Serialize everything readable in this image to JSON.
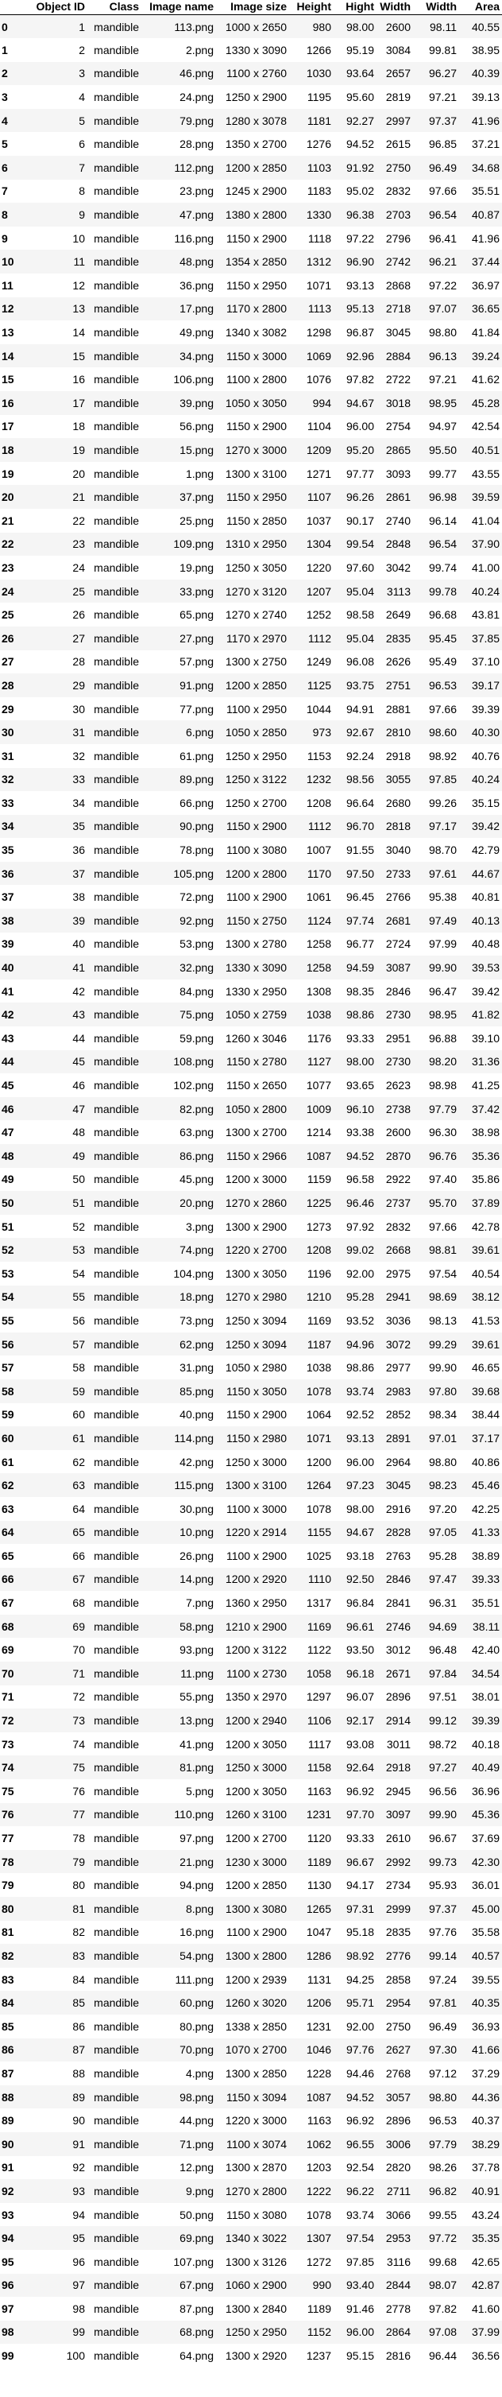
{
  "table": {
    "columns": [
      "",
      "Object ID",
      "Class",
      "Image name",
      "Image size",
      "Height",
      "Hight",
      "Width",
      "Width",
      "Area"
    ],
    "rows": [
      [
        "0",
        "1",
        "mandible",
        "113.png",
        "1000 x 2650",
        "980",
        "98.00",
        "2600",
        "98.11",
        "40.55"
      ],
      [
        "1",
        "2",
        "mandible",
        "2.png",
        "1330 x 3090",
        "1266",
        "95.19",
        "3084",
        "99.81",
        "38.95"
      ],
      [
        "2",
        "3",
        "mandible",
        "46.png",
        "1100 x 2760",
        "1030",
        "93.64",
        "2657",
        "96.27",
        "40.39"
      ],
      [
        "3",
        "4",
        "mandible",
        "24.png",
        "1250 x 2900",
        "1195",
        "95.60",
        "2819",
        "97.21",
        "39.13"
      ],
      [
        "4",
        "5",
        "mandible",
        "79.png",
        "1280 x 3078",
        "1181",
        "92.27",
        "2997",
        "97.37",
        "41.96"
      ],
      [
        "5",
        "6",
        "mandible",
        "28.png",
        "1350 x 2700",
        "1276",
        "94.52",
        "2615",
        "96.85",
        "37.21"
      ],
      [
        "6",
        "7",
        "mandible",
        "112.png",
        "1200 x 2850",
        "1103",
        "91.92",
        "2750",
        "96.49",
        "34.68"
      ],
      [
        "7",
        "8",
        "mandible",
        "23.png",
        "1245 x 2900",
        "1183",
        "95.02",
        "2832",
        "97.66",
        "35.51"
      ],
      [
        "8",
        "9",
        "mandible",
        "47.png",
        "1380 x 2800",
        "1330",
        "96.38",
        "2703",
        "96.54",
        "40.87"
      ],
      [
        "9",
        "10",
        "mandible",
        "116.png",
        "1150 x 2900",
        "1118",
        "97.22",
        "2796",
        "96.41",
        "41.96"
      ],
      [
        "10",
        "11",
        "mandible",
        "48.png",
        "1354 x 2850",
        "1312",
        "96.90",
        "2742",
        "96.21",
        "37.44"
      ],
      [
        "11",
        "12",
        "mandible",
        "36.png",
        "1150 x 2950",
        "1071",
        "93.13",
        "2868",
        "97.22",
        "36.97"
      ],
      [
        "12",
        "13",
        "mandible",
        "17.png",
        "1170 x 2800",
        "1113",
        "95.13",
        "2718",
        "97.07",
        "36.65"
      ],
      [
        "13",
        "14",
        "mandible",
        "49.png",
        "1340 x 3082",
        "1298",
        "96.87",
        "3045",
        "98.80",
        "41.84"
      ],
      [
        "14",
        "15",
        "mandible",
        "34.png",
        "1150 x 3000",
        "1069",
        "92.96",
        "2884",
        "96.13",
        "39.24"
      ],
      [
        "15",
        "16",
        "mandible",
        "106.png",
        "1100 x 2800",
        "1076",
        "97.82",
        "2722",
        "97.21",
        "41.62"
      ],
      [
        "16",
        "17",
        "mandible",
        "39.png",
        "1050 x 3050",
        "994",
        "94.67",
        "3018",
        "98.95",
        "45.28"
      ],
      [
        "17",
        "18",
        "mandible",
        "56.png",
        "1150 x 2900",
        "1104",
        "96.00",
        "2754",
        "94.97",
        "42.54"
      ],
      [
        "18",
        "19",
        "mandible",
        "15.png",
        "1270 x 3000",
        "1209",
        "95.20",
        "2865",
        "95.50",
        "40.51"
      ],
      [
        "19",
        "20",
        "mandible",
        "1.png",
        "1300 x 3100",
        "1271",
        "97.77",
        "3093",
        "99.77",
        "43.55"
      ],
      [
        "20",
        "21",
        "mandible",
        "37.png",
        "1150 x 2950",
        "1107",
        "96.26",
        "2861",
        "96.98",
        "39.59"
      ],
      [
        "21",
        "22",
        "mandible",
        "25.png",
        "1150 x 2850",
        "1037",
        "90.17",
        "2740",
        "96.14",
        "41.04"
      ],
      [
        "22",
        "23",
        "mandible",
        "109.png",
        "1310 x 2950",
        "1304",
        "99.54",
        "2848",
        "96.54",
        "37.90"
      ],
      [
        "23",
        "24",
        "mandible",
        "19.png",
        "1250 x 3050",
        "1220",
        "97.60",
        "3042",
        "99.74",
        "41.00"
      ],
      [
        "24",
        "25",
        "mandible",
        "33.png",
        "1270 x 3120",
        "1207",
        "95.04",
        "3113",
        "99.78",
        "40.24"
      ],
      [
        "25",
        "26",
        "mandible",
        "65.png",
        "1270 x 2740",
        "1252",
        "98.58",
        "2649",
        "96.68",
        "43.81"
      ],
      [
        "26",
        "27",
        "mandible",
        "27.png",
        "1170 x 2970",
        "1112",
        "95.04",
        "2835",
        "95.45",
        "37.85"
      ],
      [
        "27",
        "28",
        "mandible",
        "57.png",
        "1300 x 2750",
        "1249",
        "96.08",
        "2626",
        "95.49",
        "37.10"
      ],
      [
        "28",
        "29",
        "mandible",
        "91.png",
        "1200 x 2850",
        "1125",
        "93.75",
        "2751",
        "96.53",
        "39.17"
      ],
      [
        "29",
        "30",
        "mandible",
        "77.png",
        "1100 x 2950",
        "1044",
        "94.91",
        "2881",
        "97.66",
        "39.39"
      ],
      [
        "30",
        "31",
        "mandible",
        "6.png",
        "1050 x 2850",
        "973",
        "92.67",
        "2810",
        "98.60",
        "40.30"
      ],
      [
        "31",
        "32",
        "mandible",
        "61.png",
        "1250 x 2950",
        "1153",
        "92.24",
        "2918",
        "98.92",
        "40.76"
      ],
      [
        "32",
        "33",
        "mandible",
        "89.png",
        "1250 x 3122",
        "1232",
        "98.56",
        "3055",
        "97.85",
        "40.24"
      ],
      [
        "33",
        "34",
        "mandible",
        "66.png",
        "1250 x 2700",
        "1208",
        "96.64",
        "2680",
        "99.26",
        "35.15"
      ],
      [
        "34",
        "35",
        "mandible",
        "90.png",
        "1150 x 2900",
        "1112",
        "96.70",
        "2818",
        "97.17",
        "39.42"
      ],
      [
        "35",
        "36",
        "mandible",
        "78.png",
        "1100 x 3080",
        "1007",
        "91.55",
        "3040",
        "98.70",
        "42.79"
      ],
      [
        "36",
        "37",
        "mandible",
        "105.png",
        "1200 x 2800",
        "1170",
        "97.50",
        "2733",
        "97.61",
        "44.67"
      ],
      [
        "37",
        "38",
        "mandible",
        "72.png",
        "1100 x 2900",
        "1061",
        "96.45",
        "2766",
        "95.38",
        "40.81"
      ],
      [
        "38",
        "39",
        "mandible",
        "92.png",
        "1150 x 2750",
        "1124",
        "97.74",
        "2681",
        "97.49",
        "40.13"
      ],
      [
        "39",
        "40",
        "mandible",
        "53.png",
        "1300 x 2780",
        "1258",
        "96.77",
        "2724",
        "97.99",
        "40.48"
      ],
      [
        "40",
        "41",
        "mandible",
        "32.png",
        "1330 x 3090",
        "1258",
        "94.59",
        "3087",
        "99.90",
        "39.53"
      ],
      [
        "41",
        "42",
        "mandible",
        "84.png",
        "1330 x 2950",
        "1308",
        "98.35",
        "2846",
        "96.47",
        "39.42"
      ],
      [
        "42",
        "43",
        "mandible",
        "75.png",
        "1050 x 2759",
        "1038",
        "98.86",
        "2730",
        "98.95",
        "41.82"
      ],
      [
        "43",
        "44",
        "mandible",
        "59.png",
        "1260 x 3046",
        "1176",
        "93.33",
        "2951",
        "96.88",
        "39.10"
      ],
      [
        "44",
        "45",
        "mandible",
        "108.png",
        "1150 x 2780",
        "1127",
        "98.00",
        "2730",
        "98.20",
        "31.36"
      ],
      [
        "45",
        "46",
        "mandible",
        "102.png",
        "1150 x 2650",
        "1077",
        "93.65",
        "2623",
        "98.98",
        "41.25"
      ],
      [
        "46",
        "47",
        "mandible",
        "82.png",
        "1050 x 2800",
        "1009",
        "96.10",
        "2738",
        "97.79",
        "37.42"
      ],
      [
        "47",
        "48",
        "mandible",
        "63.png",
        "1300 x 2700",
        "1214",
        "93.38",
        "2600",
        "96.30",
        "38.98"
      ],
      [
        "48",
        "49",
        "mandible",
        "86.png",
        "1150 x 2966",
        "1087",
        "94.52",
        "2870",
        "96.76",
        "35.36"
      ],
      [
        "49",
        "50",
        "mandible",
        "45.png",
        "1200 x 3000",
        "1159",
        "96.58",
        "2922",
        "97.40",
        "35.86"
      ],
      [
        "50",
        "51",
        "mandible",
        "20.png",
        "1270 x 2860",
        "1225",
        "96.46",
        "2737",
        "95.70",
        "37.89"
      ],
      [
        "51",
        "52",
        "mandible",
        "3.png",
        "1300 x 2900",
        "1273",
        "97.92",
        "2832",
        "97.66",
        "42.78"
      ],
      [
        "52",
        "53",
        "mandible",
        "74.png",
        "1220 x 2700",
        "1208",
        "99.02",
        "2668",
        "98.81",
        "39.61"
      ],
      [
        "53",
        "54",
        "mandible",
        "104.png",
        "1300 x 3050",
        "1196",
        "92.00",
        "2975",
        "97.54",
        "40.54"
      ],
      [
        "54",
        "55",
        "mandible",
        "18.png",
        "1270 x 2980",
        "1210",
        "95.28",
        "2941",
        "98.69",
        "38.12"
      ],
      [
        "55",
        "56",
        "mandible",
        "73.png",
        "1250 x 3094",
        "1169",
        "93.52",
        "3036",
        "98.13",
        "41.53"
      ],
      [
        "56",
        "57",
        "mandible",
        "62.png",
        "1250 x 3094",
        "1187",
        "94.96",
        "3072",
        "99.29",
        "39.61"
      ],
      [
        "57",
        "58",
        "mandible",
        "31.png",
        "1050 x 2980",
        "1038",
        "98.86",
        "2977",
        "99.90",
        "46.65"
      ],
      [
        "58",
        "59",
        "mandible",
        "85.png",
        "1150 x 3050",
        "1078",
        "93.74",
        "2983",
        "97.80",
        "39.68"
      ],
      [
        "59",
        "60",
        "mandible",
        "40.png",
        "1150 x 2900",
        "1064",
        "92.52",
        "2852",
        "98.34",
        "38.44"
      ],
      [
        "60",
        "61",
        "mandible",
        "114.png",
        "1150 x 2980",
        "1071",
        "93.13",
        "2891",
        "97.01",
        "37.17"
      ],
      [
        "61",
        "62",
        "mandible",
        "42.png",
        "1250 x 3000",
        "1200",
        "96.00",
        "2964",
        "98.80",
        "40.86"
      ],
      [
        "62",
        "63",
        "mandible",
        "115.png",
        "1300 x 3100",
        "1264",
        "97.23",
        "3045",
        "98.23",
        "45.46"
      ],
      [
        "63",
        "64",
        "mandible",
        "30.png",
        "1100 x 3000",
        "1078",
        "98.00",
        "2916",
        "97.20",
        "42.25"
      ],
      [
        "64",
        "65",
        "mandible",
        "10.png",
        "1220 x 2914",
        "1155",
        "94.67",
        "2828",
        "97.05",
        "41.33"
      ],
      [
        "65",
        "66",
        "mandible",
        "26.png",
        "1100 x 2900",
        "1025",
        "93.18",
        "2763",
        "95.28",
        "38.89"
      ],
      [
        "66",
        "67",
        "mandible",
        "14.png",
        "1200 x 2920",
        "1110",
        "92.50",
        "2846",
        "97.47",
        "39.33"
      ],
      [
        "67",
        "68",
        "mandible",
        "7.png",
        "1360 x 2950",
        "1317",
        "96.84",
        "2841",
        "96.31",
        "35.51"
      ],
      [
        "68",
        "69",
        "mandible",
        "58.png",
        "1210 x 2900",
        "1169",
        "96.61",
        "2746",
        "94.69",
        "38.11"
      ],
      [
        "69",
        "70",
        "mandible",
        "93.png",
        "1200 x 3122",
        "1122",
        "93.50",
        "3012",
        "96.48",
        "42.40"
      ],
      [
        "70",
        "71",
        "mandible",
        "11.png",
        "1100 x 2730",
        "1058",
        "96.18",
        "2671",
        "97.84",
        "34.54"
      ],
      [
        "71",
        "72",
        "mandible",
        "55.png",
        "1350 x 2970",
        "1297",
        "96.07",
        "2896",
        "97.51",
        "38.01"
      ],
      [
        "72",
        "73",
        "mandible",
        "13.png",
        "1200 x 2940",
        "1106",
        "92.17",
        "2914",
        "99.12",
        "39.39"
      ],
      [
        "73",
        "74",
        "mandible",
        "41.png",
        "1200 x 3050",
        "1117",
        "93.08",
        "3011",
        "98.72",
        "40.18"
      ],
      [
        "74",
        "75",
        "mandible",
        "81.png",
        "1250 x 3000",
        "1158",
        "92.64",
        "2918",
        "97.27",
        "40.49"
      ],
      [
        "75",
        "76",
        "mandible",
        "5.png",
        "1200 x 3050",
        "1163",
        "96.92",
        "2945",
        "96.56",
        "36.96"
      ],
      [
        "76",
        "77",
        "mandible",
        "110.png",
        "1260 x 3100",
        "1231",
        "97.70",
        "3097",
        "99.90",
        "45.36"
      ],
      [
        "77",
        "78",
        "mandible",
        "97.png",
        "1200 x 2700",
        "1120",
        "93.33",
        "2610",
        "96.67",
        "37.69"
      ],
      [
        "78",
        "79",
        "mandible",
        "21.png",
        "1230 x 3000",
        "1189",
        "96.67",
        "2992",
        "99.73",
        "42.30"
      ],
      [
        "79",
        "80",
        "mandible",
        "94.png",
        "1200 x 2850",
        "1130",
        "94.17",
        "2734",
        "95.93",
        "36.01"
      ],
      [
        "80",
        "81",
        "mandible",
        "8.png",
        "1300 x 3080",
        "1265",
        "97.31",
        "2999",
        "97.37",
        "45.00"
      ],
      [
        "81",
        "82",
        "mandible",
        "16.png",
        "1100 x 2900",
        "1047",
        "95.18",
        "2835",
        "97.76",
        "35.58"
      ],
      [
        "82",
        "83",
        "mandible",
        "54.png",
        "1300 x 2800",
        "1286",
        "98.92",
        "2776",
        "99.14",
        "40.57"
      ],
      [
        "83",
        "84",
        "mandible",
        "111.png",
        "1200 x 2939",
        "1131",
        "94.25",
        "2858",
        "97.24",
        "39.55"
      ],
      [
        "84",
        "85",
        "mandible",
        "60.png",
        "1260 x 3020",
        "1206",
        "95.71",
        "2954",
        "97.81",
        "40.35"
      ],
      [
        "85",
        "86",
        "mandible",
        "80.png",
        "1338 x 2850",
        "1231",
        "92.00",
        "2750",
        "96.49",
        "36.93"
      ],
      [
        "86",
        "87",
        "mandible",
        "70.png",
        "1070 x 2700",
        "1046",
        "97.76",
        "2627",
        "97.30",
        "41.66"
      ],
      [
        "87",
        "88",
        "mandible",
        "4.png",
        "1300 x 2850",
        "1228",
        "94.46",
        "2768",
        "97.12",
        "37.29"
      ],
      [
        "88",
        "89",
        "mandible",
        "98.png",
        "1150 x 3094",
        "1087",
        "94.52",
        "3057",
        "98.80",
        "44.36"
      ],
      [
        "89",
        "90",
        "mandible",
        "44.png",
        "1220 x 3000",
        "1163",
        "96.92",
        "2896",
        "96.53",
        "40.37"
      ],
      [
        "90",
        "91",
        "mandible",
        "71.png",
        "1100 x 3074",
        "1062",
        "96.55",
        "3006",
        "97.79",
        "38.29"
      ],
      [
        "91",
        "92",
        "mandible",
        "12.png",
        "1300 x 2870",
        "1203",
        "92.54",
        "2820",
        "98.26",
        "37.78"
      ],
      [
        "92",
        "93",
        "mandible",
        "9.png",
        "1270 x 2800",
        "1222",
        "96.22",
        "2711",
        "96.82",
        "40.91"
      ],
      [
        "93",
        "94",
        "mandible",
        "50.png",
        "1150 x 3080",
        "1078",
        "93.74",
        "3066",
        "99.55",
        "43.24"
      ],
      [
        "94",
        "95",
        "mandible",
        "69.png",
        "1340 x 3022",
        "1307",
        "97.54",
        "2953",
        "97.72",
        "35.35"
      ],
      [
        "95",
        "96",
        "mandible",
        "107.png",
        "1300 x 3126",
        "1272",
        "97.85",
        "3116",
        "99.68",
        "42.65"
      ],
      [
        "96",
        "97",
        "mandible",
        "67.png",
        "1060 x 2900",
        "990",
        "93.40",
        "2844",
        "98.07",
        "42.87"
      ],
      [
        "97",
        "98",
        "mandible",
        "87.png",
        "1300 x 2840",
        "1189",
        "91.46",
        "2778",
        "97.82",
        "41.60"
      ],
      [
        "98",
        "99",
        "mandible",
        "68.png",
        "1250 x 2950",
        "1152",
        "96.00",
        "2864",
        "97.08",
        "37.99"
      ],
      [
        "99",
        "100",
        "mandible",
        "64.png",
        "1300 x 2920",
        "1237",
        "95.15",
        "2816",
        "96.44",
        "36.56"
      ]
    ]
  },
  "colors": {
    "row_stripe": "#f5f5f5",
    "row_plain": "#ffffff",
    "text": "#000000",
    "header_rule": "#000000"
  }
}
